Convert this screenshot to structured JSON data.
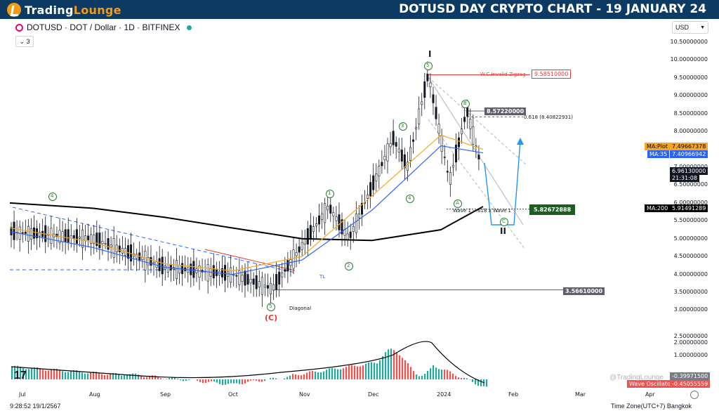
{
  "header": {
    "logo_prefix": "Trading",
    "logo_suffix": "Lounge",
    "title": "DOTUSD DAY CRYPTO CHART - 19 JANUARY 24"
  },
  "toolbar": {
    "symbol_line": "DOTUSD · DOT / Dollar · 1D · BITFINEX",
    "collapse_count": "3",
    "currency": "USD"
  },
  "price_axis": {
    "ticks": [
      "10.50000000",
      "10.00000000",
      "9.50000000",
      "9.00000000",
      "8.50000000",
      "8.00000000",
      "7.50000000",
      "7.00000000",
      "6.50000000",
      "6.00000000",
      "5.50000000",
      "5.00000000",
      "4.50000000",
      "4.00000000",
      "3.50000000",
      "3.00000000",
      "2.50000000",
      "2.00000000",
      "1.00000000"
    ]
  },
  "price_tags": {
    "ma_plot_label": "MA:Plot",
    "ma_plot_value": "7.49667378",
    "ma35_label": "MA:35",
    "ma35_value": "7.40966942",
    "last_price": "6.96130000",
    "countdown": "21:31:08",
    "ma200_label": "MA:200",
    "ma200_value": "5.91491289",
    "osc_value_1": "-0.39971500",
    "osc_label": "Wave Oscillator",
    "osc_value_2": "-0.45055559"
  },
  "annotations": {
    "invalid_zigzag": "W.C.Invalid Zigzag",
    "invalid_price": "9.58510000",
    "b_high": "8.57220000",
    "fib_618": "0.618 (8.40822931)",
    "wave_target_text": "Wave 1 - .618 x Wave 1",
    "wave_target_price": "5.82672888",
    "low_price": "3.56610000",
    "diagonal": "Diagonal",
    "tl": "TL",
    "wave_labels": {
      "w1": "1",
      "w2": "2",
      "w3": "3",
      "w4_top": "4",
      "w4_mid": "4",
      "w5_top": "5",
      "w5_low": "5",
      "wA": "A",
      "wB": "B",
      "wC": "C",
      "wC_red": "(C)",
      "deg_I": "I",
      "deg_II": "II"
    }
  },
  "time_axis": [
    "Jul",
    "Aug",
    "Sep",
    "Oct",
    "Nov",
    "Dec",
    "2024",
    "Feb",
    "Mar",
    "Apr"
  ],
  "footer": {
    "tv_logo": "17",
    "time_readout": "9:28:52 19/1/2567",
    "timezone": "Time Zone(UTC+7) Bangkok",
    "watermark": "@TradingLounge"
  },
  "colors": {
    "header_bg": "#0d3a63",
    "accent_orange": "#f39c12",
    "ma_plot": "#f5a623",
    "ma35": "#2962ff",
    "ma200": "#000000",
    "invalid_red": "#e53935",
    "target_green": "#1b5e20",
    "osc_up": "#26a69a",
    "osc_down": "#ef5350",
    "wave_green": "#2e7d32",
    "projection_blue": "#2196f3"
  },
  "chart_data": {
    "type": "line",
    "title": "DOTUSD · DOT / Dollar · 1D · BITFINEX",
    "ylim": [
      1.0,
      10.5
    ],
    "x_labels": [
      "Jul",
      "Aug",
      "Sep",
      "Oct",
      "Nov",
      "Dec",
      "2024",
      "Feb",
      "Mar",
      "Apr"
    ],
    "series": [
      {
        "name": "MA:200",
        "values": [
          6.0,
          5.85,
          5.6,
          5.3,
          5.0,
          4.95,
          5.25,
          5.9
        ]
      },
      {
        "name": "MA:35",
        "values": [
          5.2,
          4.75,
          4.2,
          4.0,
          4.4,
          5.8,
          7.6,
          7.4
        ]
      },
      {
        "name": "MA:Plot",
        "values": [
          5.3,
          4.9,
          4.3,
          4.1,
          4.5,
          6.2,
          7.9,
          7.5
        ]
      }
    ],
    "price_path": [
      [
        "Jul",
        5.2
      ],
      [
        "Aug",
        5.0
      ],
      [
        "Sep",
        4.2
      ],
      [
        "Oct",
        4.0
      ],
      [
        "Oct",
        3.6
      ],
      [
        "Nov",
        4.8
      ],
      [
        "Nov",
        5.9
      ],
      [
        "Nov",
        5.0
      ],
      [
        "Dec",
        7.8
      ],
      [
        "Dec",
        7.0
      ],
      [
        "2024",
        9.6
      ],
      [
        "2024",
        6.6
      ],
      [
        "2024",
        8.6
      ],
      [
        "2024",
        6.96
      ]
    ],
    "levels": [
      {
        "label": "W.C.Invalid Zigzag",
        "value": 9.5851
      },
      {
        "label": "B",
        "value": 8.5722
      },
      {
        "label": "0.618",
        "value": 8.40822931
      },
      {
        "label": "Wave 1 - .618 x Wave 1",
        "value": 5.82672888
      },
      {
        "label": "low",
        "value": 3.5661
      }
    ],
    "wave_oscillator": {
      "last": [
        -0.399715,
        -0.45055559
      ]
    }
  }
}
